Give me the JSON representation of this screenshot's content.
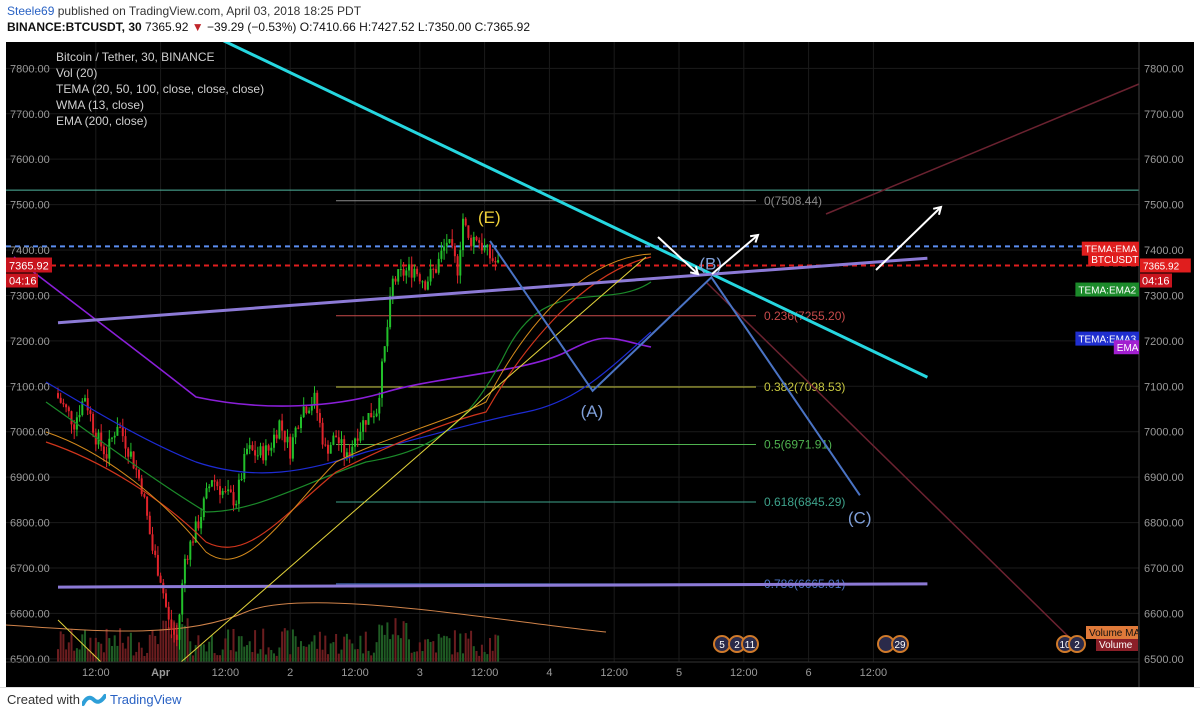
{
  "header": {
    "user": "Steele69",
    "published": "published on TradingView.com, April 03, 2018 18:25 PDT",
    "symbol": "BINANCE:BTCUSDT, 30",
    "last": "7365.92",
    "change": "−3 9.29 (−0.53%)",
    "ohlc_o_label": "O:",
    "ohlc_o": "7410.66",
    "ohlc_h_label": "H:",
    "ohlc_h": "7427.52",
    "ohlc_l_label": "L:",
    "ohlc_l": "7350.00",
    "ohlc_c_label": "C:",
    "ohlc_c": "7365.92"
  },
  "footer": {
    "created": "Created with",
    "brand": "TradingView"
  },
  "colors": {
    "bg": "#000000",
    "up": "#22c02a",
    "down": "#e0232b",
    "grid": "#1b1b1b",
    "trend_cyan": "#26d7e0",
    "trend_purple": "#8c7ad6",
    "wave": "#4a73c4",
    "dashed_blue": "#5b8df0",
    "dashed_red": "#e01e1e"
  },
  "chart_data": {
    "type": "candlestick",
    "title": "Bitcoin / Tether, 30, BINANCE",
    "indicators": [
      "Vol (20)",
      "TEMA (20, 50, 100, close, close, close)",
      "WMA (13, close)",
      "EMA (200, close)"
    ],
    "ylim": [
      6460,
      7880
    ],
    "y_ticks": [
      6500,
      6600,
      6700,
      6800,
      6900,
      7000,
      7100,
      7200,
      7300,
      7400,
      7500,
      7600,
      7700,
      7800
    ],
    "y_tick_labels": [
      "6500.00",
      "6600.00",
      "6700.00",
      "6800.00",
      "6900.00",
      "7000.00",
      "7100.00",
      "7200.00",
      "7300.00",
      "7400.00",
      "7500.00",
      "7600.00",
      "7700.00",
      "7800.00"
    ],
    "x_ticks": [
      {
        "bar": 14,
        "label": "12:00"
      },
      {
        "bar": 38,
        "label": "Apr"
      },
      {
        "bar": 62,
        "label": "12:00"
      },
      {
        "bar": 86,
        "label": "2"
      },
      {
        "bar": 110,
        "label": "12:00"
      },
      {
        "bar": 134,
        "label": "3"
      },
      {
        "bar": 158,
        "label": "12:00"
      },
      {
        "bar": 182,
        "label": "4"
      },
      {
        "bar": 206,
        "label": "12:00"
      },
      {
        "bar": 230,
        "label": "5"
      },
      {
        "bar": 254,
        "label": "12:00"
      },
      {
        "bar": 278,
        "label": "6"
      },
      {
        "bar": 302,
        "label": "12:00"
      }
    ],
    "candles_anchor_close": [
      [
        0,
        7075
      ],
      [
        6,
        7020
      ],
      [
        10,
        7080
      ],
      [
        14,
        6990
      ],
      [
        18,
        6950
      ],
      [
        22,
        7020
      ],
      [
        27,
        6950
      ],
      [
        31,
        6880
      ],
      [
        35,
        6740
      ],
      [
        38,
        6680
      ],
      [
        41,
        6580
      ],
      [
        44,
        6540
      ],
      [
        47,
        6720
      ],
      [
        52,
        6800
      ],
      [
        57,
        6900
      ],
      [
        62,
        6860
      ],
      [
        66,
        6850
      ],
      [
        70,
        6960
      ],
      [
        74,
        6950
      ],
      [
        78,
        6960
      ],
      [
        82,
        7020
      ],
      [
        86,
        6960
      ],
      [
        90,
        7050
      ],
      [
        95,
        7070
      ],
      [
        99,
        6960
      ],
      [
        103,
        6990
      ],
      [
        107,
        6940
      ],
      [
        110,
        6990
      ],
      [
        114,
        7030
      ],
      [
        118,
        7050
      ],
      [
        121,
        7180
      ],
      [
        124,
        7330
      ],
      [
        128,
        7350
      ],
      [
        132,
        7360
      ],
      [
        136,
        7330
      ],
      [
        140,
        7360
      ],
      [
        144,
        7420
      ],
      [
        148,
        7360
      ],
      [
        150,
        7470
      ],
      [
        152,
        7420
      ],
      [
        155,
        7430
      ],
      [
        158,
        7400
      ],
      [
        160,
        7385
      ],
      [
        163,
        7366
      ]
    ],
    "last_price": 7365.92,
    "last_price_countdown": "04:16",
    "fibonacci": [
      {
        "ratio": "0",
        "price": 7508.44,
        "label": "0(7508.44)",
        "color": "#8a8a8a"
      },
      {
        "ratio": "0.236",
        "price": 7255.2,
        "label": "0.236(7255.20)",
        "color": "#c84b4b"
      },
      {
        "ratio": "0.382",
        "price": 7098.53,
        "label": "0.382(7098.53)",
        "color": "#c8c841"
      },
      {
        "ratio": "0.5",
        "price": 6971.91,
        "label": "0.5(6971.91)",
        "color": "#4fb24f"
      },
      {
        "ratio": "0.618",
        "price": 6845.29,
        "label": "0.618(6845.29)",
        "color": "#3ea38c"
      },
      {
        "ratio": "0.786",
        "price": 6665.01,
        "label": "0.786(6665.01)",
        "color": "#4a73c4"
      }
    ],
    "horizontal_levels": [
      {
        "price": 7532,
        "color": "#4fb7a0"
      },
      {
        "price": 7408,
        "color": "#5b8df0",
        "style": "dashed"
      },
      {
        "price": 7366,
        "color": "#e01e1e",
        "style": "dashed"
      }
    ],
    "trendlines": [
      {
        "name": "cyan-resistance",
        "from": [
          51,
          7890
        ],
        "to": [
          322,
          7120
        ]
      },
      {
        "name": "purple-support",
        "from": [
          0,
          7240
        ],
        "to": [
          322,
          7382
        ]
      },
      {
        "name": "purple-floor",
        "from": [
          0,
          6658
        ],
        "to": [
          322,
          6665
        ]
      }
    ],
    "wave_points": [
      {
        "label": "(E)",
        "bar": 160,
        "price": 7420
      },
      {
        "label": "(A)",
        "bar": 198,
        "price": 7090
      },
      {
        "label": "(B)",
        "bar": 242,
        "price": 7340
      },
      {
        "label": "(C)",
        "bar": 297,
        "price": 6860
      }
    ],
    "price_tags": [
      {
        "label": "TEMA:EMA",
        "price": 7403,
        "color": "#e01e1e"
      },
      {
        "label": "BTCUSDT",
        "price": 7380,
        "color": "#e01e1e"
      },
      {
        "label": "7365.92",
        "price": 7366,
        "color": "#e01e1e"
      },
      {
        "label": "TEMA:EMA2",
        "price": 7313,
        "color": "#1b8a2a"
      },
      {
        "label": "TEMA:EMA3",
        "price": 7205,
        "color": "#1f2ecf"
      },
      {
        "label": "EMA",
        "price": 7186,
        "color": "#a21fd0"
      }
    ],
    "event_badges": [
      "5",
      "2",
      "11",
      "29",
      "10",
      "2"
    ],
    "volume_label": "Volume MA",
    "volume_label2": "Volume"
  }
}
